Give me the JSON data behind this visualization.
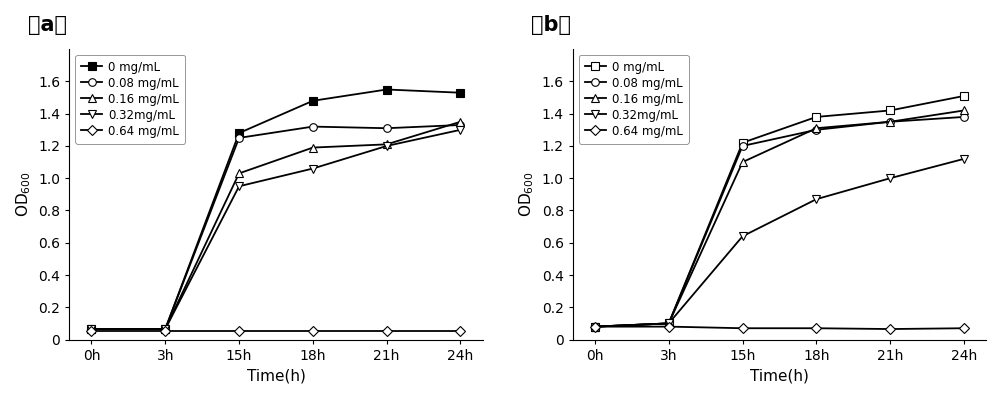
{
  "time_labels": [
    "0h",
    "3h",
    "15h",
    "18h",
    "21h",
    "24h"
  ],
  "time_indices": [
    0,
    1,
    2,
    3,
    4,
    5
  ],
  "panel_a": {
    "title": "（a）",
    "series": [
      {
        "label": "0 mg/mL",
        "marker": "s",
        "filled": true,
        "values": [
          0.065,
          0.065,
          1.28,
          1.48,
          1.55,
          1.53
        ]
      },
      {
        "label": "0.08 mg/mL",
        "marker": "o",
        "filled": false,
        "values": [
          0.065,
          0.065,
          1.25,
          1.32,
          1.31,
          1.33
        ]
      },
      {
        "label": "0.16 mg/mL",
        "marker": "^",
        "filled": false,
        "values": [
          0.065,
          0.065,
          1.03,
          1.19,
          1.21,
          1.35
        ]
      },
      {
        "label": "0.32mg/mL",
        "marker": "v",
        "filled": false,
        "values": [
          0.065,
          0.065,
          0.95,
          1.06,
          1.2,
          1.3
        ]
      },
      {
        "label": "0.64 mg/mL",
        "marker": "D",
        "filled": false,
        "values": [
          0.055,
          0.055,
          0.055,
          0.055,
          0.055,
          0.055
        ]
      }
    ],
    "ylabel": "OD$_{600}$",
    "xlabel": "Time(h)",
    "ylim": [
      0,
      1.8
    ],
    "yticks": [
      0.0,
      0.2,
      0.4,
      0.6,
      0.8,
      1.0,
      1.2,
      1.4,
      1.6
    ]
  },
  "panel_b": {
    "title": "（b）",
    "series": [
      {
        "label": "0 mg/mL",
        "marker": "s",
        "filled": false,
        "values": [
          0.08,
          0.1,
          1.22,
          1.38,
          1.42,
          1.51
        ]
      },
      {
        "label": "0.08 mg/mL",
        "marker": "o",
        "filled": false,
        "values": [
          0.08,
          0.1,
          1.2,
          1.3,
          1.35,
          1.38
        ]
      },
      {
        "label": "0.16 mg/mL",
        "marker": "^",
        "filled": false,
        "values": [
          0.08,
          0.1,
          1.1,
          1.31,
          1.35,
          1.42
        ]
      },
      {
        "label": "0.32mg/mL",
        "marker": "v",
        "filled": false,
        "values": [
          0.08,
          0.1,
          0.64,
          0.87,
          1.0,
          1.12
        ]
      },
      {
        "label": "0.64 mg/mL",
        "marker": "D",
        "filled": false,
        "values": [
          0.08,
          0.08,
          0.07,
          0.07,
          0.065,
          0.07
        ]
      }
    ],
    "ylabel": "OD$_{600}$",
    "xlabel": "Time(h)",
    "ylim": [
      0,
      1.8
    ],
    "yticks": [
      0.0,
      0.2,
      0.4,
      0.6,
      0.8,
      1.0,
      1.2,
      1.4,
      1.6
    ]
  },
  "background_color": "#ffffff",
  "legend_fontsize": 8.5,
  "axis_label_fontsize": 11,
  "tick_fontsize": 10,
  "title_fontsize": 15,
  "line_width": 1.3,
  "marker_size": 5.5
}
